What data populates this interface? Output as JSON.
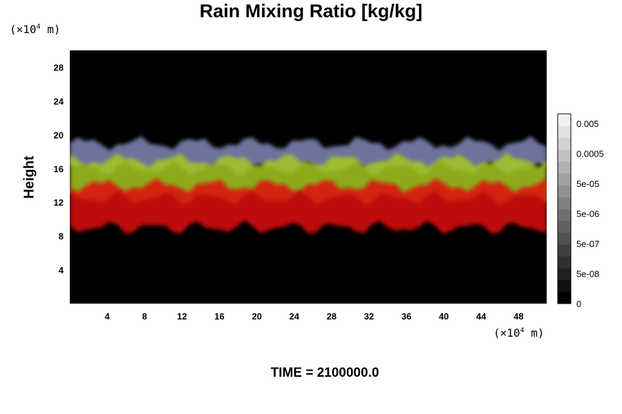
{
  "chart_data": {
    "type": "heatmap",
    "title": "Rain Mixing Ratio [kg/kg]",
    "ylabel": "Height",
    "x_units_prefix": "(×10",
    "x_units_exp": "4",
    "x_units_suffix": " m)",
    "y_units_prefix": "(×10",
    "y_units_exp": "4",
    "y_units_suffix": " m)",
    "footer": "TIME = 2100000.0",
    "xlim": [
      0,
      51
    ],
    "ylim": [
      0,
      30
    ],
    "x_ticks": [
      "4",
      "8",
      "12",
      "16",
      "20",
      "24",
      "28",
      "32",
      "36",
      "40",
      "44",
      "48"
    ],
    "y_ticks": [
      "4",
      "8",
      "12",
      "16",
      "20",
      "24",
      "28"
    ],
    "colorbar": {
      "levels": 16,
      "labels": [
        "0.005",
        "0.0005",
        "5e-05",
        "5e-06",
        "5e-07",
        "5e-08",
        "0"
      ],
      "scale": "log"
    },
    "layers": [
      {
        "name": "upper",
        "color": "#8088b8",
        "y_range": [
          16,
          19
        ]
      },
      {
        "name": "middle",
        "color": "#a6c820",
        "y_range": [
          12.5,
          17
        ]
      },
      {
        "name": "lower",
        "color": "#e01010",
        "y_range": [
          9,
          14
        ]
      }
    ],
    "background_color": "#000000"
  }
}
